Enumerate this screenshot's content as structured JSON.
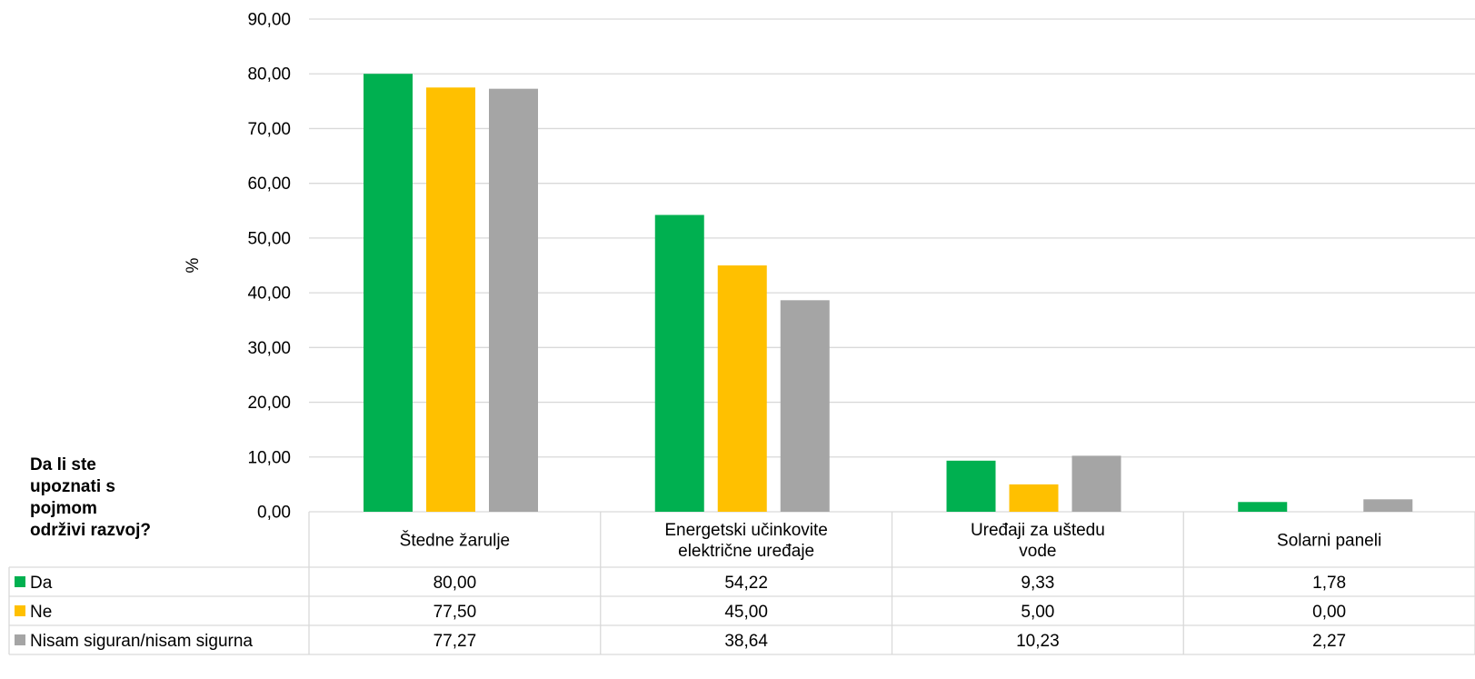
{
  "chart_data": {
    "type": "bar",
    "title": "",
    "ylabel": "%",
    "xlabel": "",
    "ylim": [
      0,
      90
    ],
    "yticks": [
      "0,00",
      "10,00",
      "20,00",
      "30,00",
      "40,00",
      "50,00",
      "60,00",
      "70,00",
      "80,00",
      "90,00"
    ],
    "table_title": "Da li ste upoznati s pojmom održivi razvoj?",
    "categories": [
      [
        "Štedne žarulje"
      ],
      [
        "Energetski učinkovite",
        "električne uređaje"
      ],
      [
        "Uređaji za uštedu",
        "vode"
      ],
      [
        "Solarni paneli"
      ]
    ],
    "series": [
      {
        "name": "Da",
        "color": "#00b050",
        "values": [
          80.0,
          54.22,
          9.33,
          1.78
        ],
        "labels": [
          "80,00",
          "54,22",
          "9,33",
          "1,78"
        ]
      },
      {
        "name": "Ne",
        "color": "#ffc000",
        "values": [
          77.5,
          45.0,
          5.0,
          0.0
        ],
        "labels": [
          "77,50",
          "45,00",
          "5,00",
          "0,00"
        ]
      },
      {
        "name": "Nisam siguran/nisam sigurna",
        "color": "#a5a5a5",
        "values": [
          77.27,
          38.64,
          10.23,
          2.27
        ],
        "labels": [
          "77,27",
          "38,64",
          "10,23",
          "2,27"
        ]
      }
    ],
    "grid": true,
    "legend": "data-table"
  }
}
